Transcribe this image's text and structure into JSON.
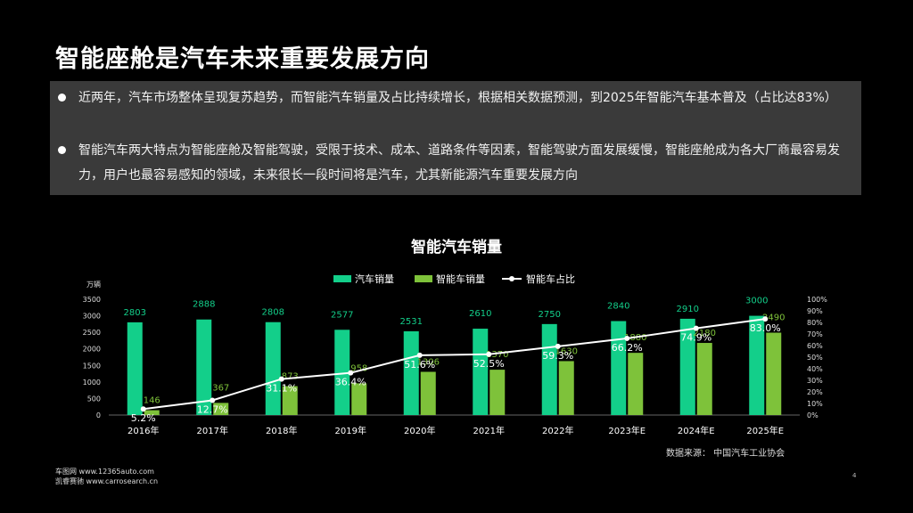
{
  "slide": {
    "title": "智能座舱是汽车未来重要发展方向",
    "bullets": [
      "近两年，汽车市场整体呈现复苏趋势，而智能汽车销量及占比持续增长，根据相关数据预测，到2025年智能汽车基本普及（占比达83%）",
      "智能汽车两大特点为智能座舱及智能驾驶，受限于技术、成本、道路条件等因素，智能驾驶方面发展缓慢，智能座舱成为各大厂商最容易发力，用户也最容易感知的领域，未来很长一段时间将是汽车，尤其新能源汽车重要发展方向"
    ],
    "source": "数据来源：  中国汽车工业协会",
    "footer_line1": "车图网 www.12365auto.com",
    "footer_line2": "凯睿赛驰 www.carrosearch.cn",
    "page_number": "4"
  },
  "chart_data": {
    "type": "bar",
    "title": "智能汽车销量",
    "y_unit_label": "万辆",
    "categories": [
      "2016年",
      "2017年",
      "2018年",
      "2019年",
      "2020年",
      "2021年",
      "2022年",
      "2023年E",
      "2024年E",
      "2025年E"
    ],
    "ylim": [
      0,
      3500
    ],
    "yticks": [
      0,
      500,
      1000,
      1500,
      2000,
      2500,
      3000,
      3500
    ],
    "y2lim": [
      0,
      100
    ],
    "y2ticks": [
      "0%",
      "10%",
      "20%",
      "30%",
      "40%",
      "50%",
      "60%",
      "70%",
      "80%",
      "90%",
      "100%"
    ],
    "legend_position": "top-center",
    "series": [
      {
        "name": "汽车销量",
        "type": "bar",
        "color": "#13cf8a",
        "values": [
          2803,
          2888,
          2808,
          2577,
          2531,
          2610,
          2750,
          2840,
          2910,
          3000
        ]
      },
      {
        "name": "智能车销量",
        "type": "bar",
        "color": "#7ec23a",
        "values": [
          146,
          367,
          873,
          958,
          1306,
          1370,
          1630,
          1880,
          2180,
          2490
        ]
      },
      {
        "name": "智能车占比",
        "type": "line",
        "axis": "right",
        "color": "#ffffff",
        "values": [
          5.2,
          12.7,
          31.1,
          36.4,
          51.6,
          52.5,
          59.3,
          66.2,
          74.9,
          83.0
        ],
        "labels": [
          "5.2%",
          "12.7%",
          "31.1%",
          "36.4%",
          "51.6%",
          "52.5%",
          "59.3%",
          "66.2%",
          "74.9%",
          "83.0%"
        ]
      }
    ]
  }
}
